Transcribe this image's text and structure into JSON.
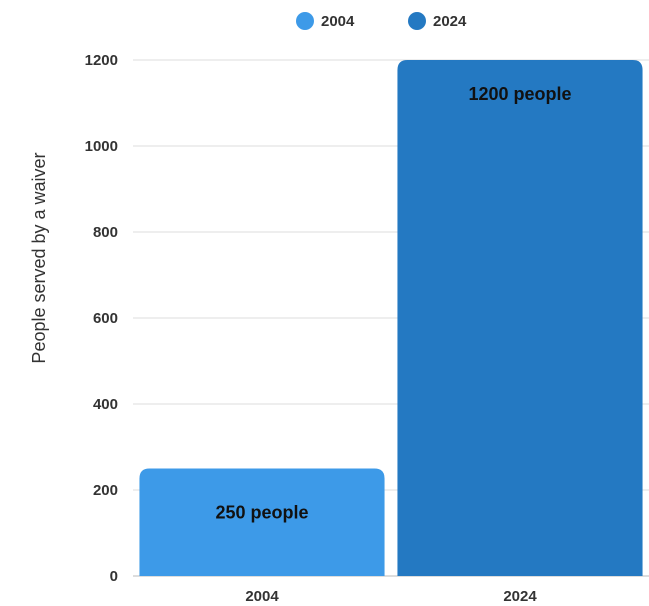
{
  "chart_data": {
    "type": "bar",
    "categories": [
      "2004",
      "2024"
    ],
    "values": [
      250,
      1200
    ],
    "data_labels": [
      "250 people",
      "1200 people"
    ],
    "legend": [
      {
        "name": "2004",
        "color": "#3d9ae8"
      },
      {
        "name": "2024",
        "color": "#2479c2"
      }
    ],
    "legend_position": "top",
    "xlabel": "",
    "ylabel": "People served by a waiver",
    "ylim": [
      0,
      1200
    ],
    "yticks": [
      0,
      200,
      400,
      600,
      800,
      1000,
      1200
    ],
    "grid": true
  }
}
